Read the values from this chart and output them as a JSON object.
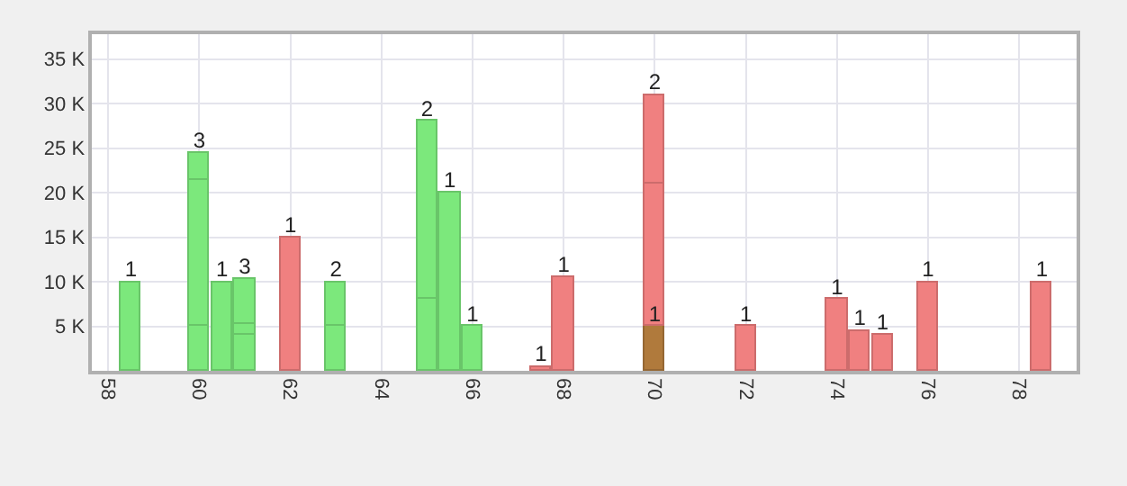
{
  "chart_data": {
    "type": "bar",
    "stacked": true,
    "x": [
      58.5,
      60,
      60.5,
      61,
      62,
      63,
      65,
      65.5,
      66,
      67.5,
      68,
      70,
      72,
      74,
      74.5,
      75,
      76,
      78.5
    ],
    "series": [
      {
        "values": [
          10000,
          5000,
          10000,
          4000,
          15000,
          5000,
          8000,
          20000,
          5000,
          500,
          10500,
          5000,
          5000,
          8000,
          4500,
          4000,
          10000,
          10000
        ],
        "colors": [
          "#7ce87c",
          "#7ce87c",
          "#7ce87c",
          "#7ce87c",
          "#f08080",
          "#7ce87c",
          "#7ce87c",
          "#7ce87c",
          "#7ce87c",
          "#f08080",
          "#f08080",
          "#b07a3c",
          "#f08080",
          "#f08080",
          "#f08080",
          "#f08080",
          "#f08080",
          "#f08080"
        ]
      },
      {
        "values": [
          null,
          16500,
          null,
          1300,
          null,
          5000,
          20000,
          null,
          null,
          null,
          null,
          16000,
          null,
          null,
          null,
          null,
          null,
          null
        ],
        "colors": [
          "#7ce87c",
          "#7ce87c",
          "#7ce87c",
          "#7ce87c",
          "#f08080",
          "#7ce87c",
          "#7ce87c",
          "#7ce87c",
          "#7ce87c",
          "#f08080",
          "#f08080",
          "#f08080",
          "#f08080",
          "#f08080",
          "#f08080",
          "#f08080",
          "#f08080",
          "#f08080"
        ]
      },
      {
        "values": [
          null,
          3000,
          null,
          5000,
          null,
          null,
          null,
          null,
          null,
          null,
          null,
          10000,
          null,
          null,
          null,
          null,
          null,
          null
        ],
        "colors": [
          "#7ce87c",
          "#7ce87c",
          "#7ce87c",
          "#7ce87c",
          "#f08080",
          "#7ce87c",
          "#7ce87c",
          "#7ce87c",
          "#7ce87c",
          "#f08080",
          "#f08080",
          "#f08080",
          "#f08080",
          "#f08080",
          "#f08080",
          "#f08080",
          "#f08080",
          "#f08080"
        ]
      }
    ],
    "annotations": [
      {
        "text": "1",
        "x": 58.5,
        "y": 10000
      },
      {
        "text": "3",
        "x": 60,
        "y": 24500
      },
      {
        "text": "1",
        "x": 60.5,
        "y": 10000
      },
      {
        "text": "3",
        "x": 61,
        "y": 10300
      },
      {
        "text": "1",
        "x": 62,
        "y": 15000
      },
      {
        "text": "2",
        "x": 63,
        "y": 10000
      },
      {
        "text": "2",
        "x": 65,
        "y": 28000
      },
      {
        "text": "1",
        "x": 65.5,
        "y": 20000
      },
      {
        "text": "1",
        "x": 66,
        "y": 5000
      },
      {
        "text": "1",
        "x": 67.5,
        "y": 500
      },
      {
        "text": "1",
        "x": 68,
        "y": 10500
      },
      {
        "text": "1",
        "x": 70,
        "y": 5000
      },
      {
        "text": "2",
        "x": 70,
        "y": 31000
      },
      {
        "text": "1",
        "x": 72,
        "y": 5000
      },
      {
        "text": "1",
        "x": 74,
        "y": 8000
      },
      {
        "text": "1",
        "x": 74.5,
        "y": 4500
      },
      {
        "text": "1",
        "x": 75,
        "y": 4000
      },
      {
        "text": "1",
        "x": 76,
        "y": 10000
      },
      {
        "text": "1",
        "x": 78.5,
        "y": 10000
      }
    ],
    "xlim": [
      57.64,
      79.26
    ],
    "xticks": [
      58,
      60,
      62,
      64,
      66,
      68,
      70,
      72,
      74,
      76,
      78
    ],
    "ylim": [
      0,
      37800
    ],
    "yticks": [
      {
        "value": 5000,
        "label": "5 K"
      },
      {
        "value": 10000,
        "label": "10 K"
      },
      {
        "value": 15000,
        "label": "15 K"
      },
      {
        "value": 20000,
        "label": "20 K"
      },
      {
        "value": 25000,
        "label": "25 K"
      },
      {
        "value": 30000,
        "label": "30 K"
      },
      {
        "value": 35000,
        "label": "35 K"
      }
    ],
    "grid": true
  }
}
